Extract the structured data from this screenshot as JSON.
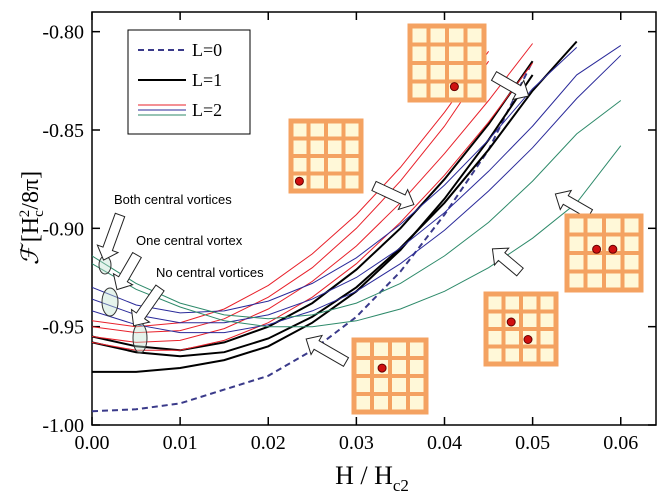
{
  "chart_data": {
    "type": "line",
    "xlabel_parts": [
      "H / H",
      "c2"
    ],
    "ylabel_parts": [
      "ℱ",
      "[H",
      "c",
      "2",
      "/8π]"
    ],
    "x": [
      0,
      0.005,
      0.01,
      0.015,
      0.02,
      0.025,
      0.03,
      0.035,
      0.04,
      0.045,
      0.05,
      0.055,
      0.06
    ],
    "xlim": [
      0,
      0.064
    ],
    "ylim": [
      -1.0,
      -0.79
    ],
    "xticks": [
      {
        "value": 0,
        "label": "0.00"
      },
      {
        "value": 0.01,
        "label": "0.01"
      },
      {
        "value": 0.02,
        "label": "0.02"
      },
      {
        "value": 0.03,
        "label": "0.03"
      },
      {
        "value": 0.04,
        "label": "0.04"
      },
      {
        "value": 0.05,
        "label": "0.05"
      },
      {
        "value": 0.06,
        "label": "0.06"
      }
    ],
    "yticks": [
      {
        "value": -1.0,
        "label": "-1.00"
      },
      {
        "value": -0.95,
        "label": "-0.95"
      },
      {
        "value": -0.9,
        "label": "-0.90"
      },
      {
        "value": -0.85,
        "label": "-0.85"
      },
      {
        "value": -0.8,
        "label": "-0.80"
      }
    ],
    "legend": "upper left",
    "series": [
      {
        "name": "L=0",
        "dashed": true,
        "curves": [
          {
            "color": "#3a3a8a",
            "values": [
              -0.993,
              -0.992,
              -0.989,
              -0.982,
              -0.975,
              -0.962,
              -0.945,
              -0.922,
              -0.893,
              -0.86,
              -0.815,
              null,
              null
            ]
          }
        ]
      },
      {
        "name": "L=1",
        "dashed": false,
        "curves": [
          {
            "color": "#000000",
            "values": [
              -0.973,
              -0.973,
              -0.971,
              -0.967,
              -0.96,
              -0.948,
              -0.932,
              -0.911,
              -0.885,
              -0.855,
              -0.822,
              null,
              null
            ]
          },
          {
            "color": "#000000",
            "values": [
              -0.958,
              -0.963,
              -0.965,
              -0.963,
              -0.956,
              -0.945,
              -0.93,
              -0.91,
              -0.887,
              -0.86,
              -0.83,
              -0.805,
              null
            ]
          },
          {
            "color": "#000000",
            "values": [
              -0.955,
              -0.96,
              -0.962,
              -0.958,
              -0.95,
              -0.938,
              -0.921,
              -0.9,
              -0.875,
              -0.847,
              -0.815,
              null,
              null
            ]
          }
        ]
      },
      {
        "name": "L=2",
        "dashed": false,
        "curves": [
          {
            "color": "#e8202a",
            "values": [
              -0.95,
              -0.953,
              -0.952,
              -0.946,
              -0.935,
              -0.92,
              -0.9,
              -0.876,
              -0.848,
              -0.815,
              null,
              null,
              null
            ]
          },
          {
            "color": "#e8202a",
            "values": [
              -0.955,
              -0.958,
              -0.957,
              -0.951,
              -0.941,
              -0.927,
              -0.909,
              -0.887,
              -0.862,
              -0.835,
              -0.806,
              null,
              null
            ]
          },
          {
            "color": "#e8202a",
            "values": [
              -0.958,
              -0.962,
              -0.962,
              -0.957,
              -0.948,
              -0.935,
              -0.918,
              -0.897,
              -0.873,
              -0.846,
              -0.816,
              null,
              null
            ]
          },
          {
            "color": "#e8202a",
            "values": [
              -0.947,
              -0.95,
              -0.948,
              -0.941,
              -0.929,
              -0.913,
              -0.893,
              -0.869,
              -0.841,
              -0.81,
              null,
              null,
              null
            ]
          },
          {
            "color": "#2a2a9a",
            "values": [
              -0.93,
              -0.939,
              -0.943,
              -0.942,
              -0.937,
              -0.928,
              -0.915,
              -0.898,
              -0.878,
              -0.855,
              -0.829,
              -0.808,
              null
            ]
          },
          {
            "color": "#2a2a9a",
            "values": [
              -0.936,
              -0.944,
              -0.948,
              -0.948,
              -0.944,
              -0.936,
              -0.925,
              -0.91,
              -0.892,
              -0.871,
              -0.848,
              -0.822,
              -0.807
            ]
          },
          {
            "color": "#2a2a9a",
            "values": [
              -0.942,
              -0.949,
              -0.953,
              -0.953,
              -0.949,
              -0.942,
              -0.932,
              -0.918,
              -0.901,
              -0.881,
              -0.859,
              -0.834,
              -0.812
            ]
          },
          {
            "color": "#2e8a6a",
            "values": [
              -0.914,
              -0.928,
              -0.938,
              -0.944,
              -0.946,
              -0.944,
              -0.938,
              -0.928,
              -0.914,
              -0.897,
              -0.876,
              -0.852,
              -0.835
            ]
          },
          {
            "color": "#2e8a6a",
            "values": [
              -0.918,
              -0.931,
              -0.94,
              -0.947,
              -0.95,
              -0.95,
              -0.947,
              -0.941,
              -0.932,
              -0.92,
              -0.905,
              -0.887,
              -0.858
            ]
          }
        ]
      }
    ],
    "annotations": [
      "Both central vortices",
      "One central vortex",
      "No central vortices"
    ]
  }
}
